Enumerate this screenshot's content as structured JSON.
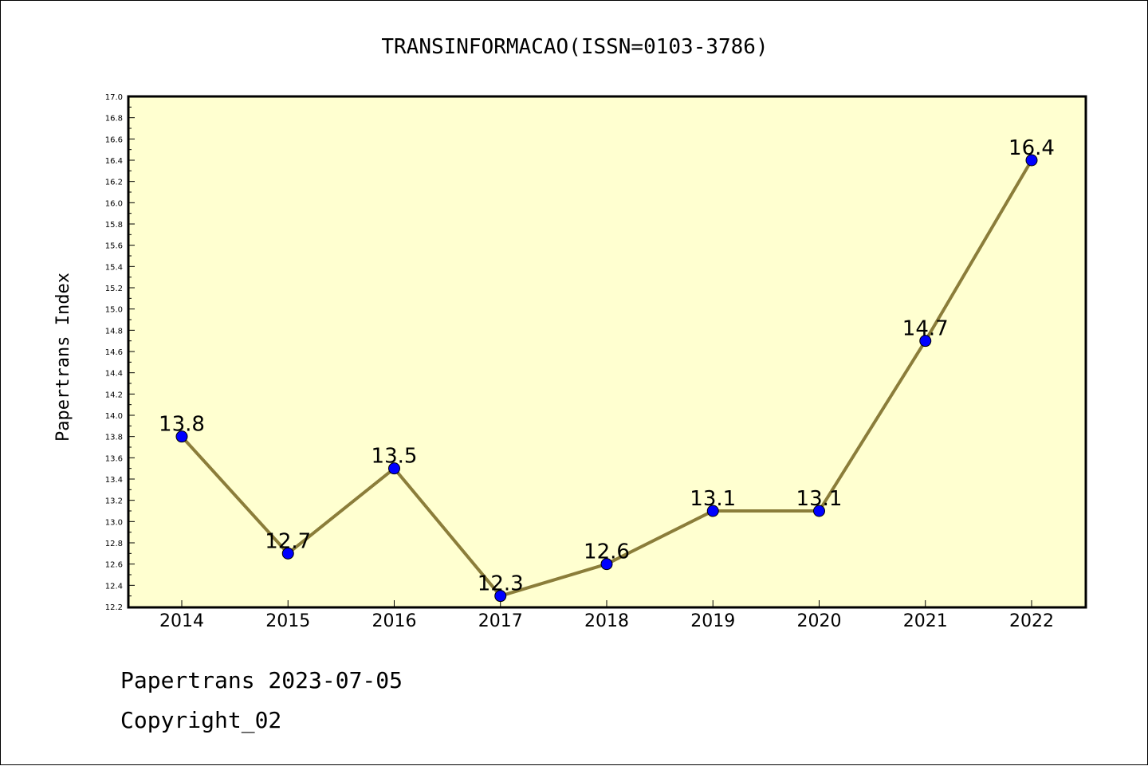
{
  "chart_data": {
    "type": "line",
    "title": "TRANSINFORMACAO(ISSN=0103-3786)",
    "xlabel": "",
    "ylabel": "Papertrans Index",
    "categories": [
      "2014",
      "2015",
      "2016",
      "2017",
      "2018",
      "2019",
      "2020",
      "2021",
      "2022"
    ],
    "values": [
      13.8,
      12.7,
      13.5,
      12.3,
      12.6,
      13.1,
      13.1,
      14.7,
      16.4
    ],
    "data_labels": [
      "13.8",
      "12.7",
      "13.5",
      "12.3",
      "12.6",
      "13.1",
      "13.1",
      "14.7",
      "16.4"
    ],
    "ylim": [
      12.2,
      17.0
    ],
    "yticks": [
      "12.2",
      "12.4",
      "12.6",
      "12.8",
      "13.0",
      "13.2",
      "13.4",
      "13.6",
      "13.8",
      "14.0",
      "14.2",
      "14.4",
      "14.6",
      "14.8",
      "15.0",
      "15.2",
      "15.4",
      "15.6",
      "15.8",
      "16.0",
      "16.2",
      "16.4",
      "16.6",
      "16.8",
      "17.0"
    ],
    "grid": false,
    "legend": "none",
    "colors": {
      "plot_background": "#ffffd0",
      "line": "#8b7d3a",
      "marker": "#0000ff"
    }
  },
  "footer": {
    "line1": "Papertrans 2023-07-05",
    "line2": "Copyright_02"
  }
}
